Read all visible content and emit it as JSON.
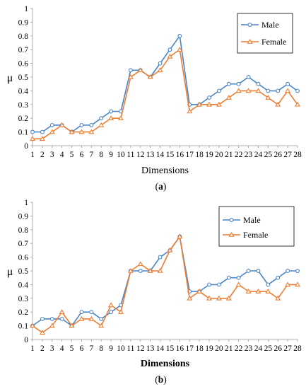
{
  "chart_data": [
    {
      "type": "line",
      "panel_label": "(a)",
      "xlabel": "Dimensions",
      "ylabel": "μ",
      "ylim": [
        0,
        1
      ],
      "yticks": [
        "0",
        "0.1",
        "0.2",
        "0.3",
        "0.4",
        "0.5",
        "0.6",
        "0.7",
        "0.8",
        "0.9",
        "1"
      ],
      "x": [
        "1",
        "2",
        "3",
        "4",
        "5",
        "6",
        "7",
        "8",
        "9",
        "10",
        "11",
        "12",
        "13",
        "14",
        "15",
        "16",
        "17",
        "18",
        "19",
        "20",
        "21",
        "22",
        "23",
        "24",
        "25",
        "26",
        "27",
        "28"
      ],
      "grid": false,
      "legend_position": "top-right",
      "series": [
        {
          "name": "Male",
          "color": "#4a86c8",
          "marker": "circle",
          "values": [
            0.1,
            0.1,
            0.15,
            0.15,
            0.1,
            0.15,
            0.15,
            0.2,
            0.25,
            0.25,
            0.55,
            0.55,
            0.5,
            0.6,
            0.7,
            0.8,
            0.3,
            0.3,
            0.35,
            0.4,
            0.45,
            0.45,
            0.5,
            0.45,
            0.4,
            0.4,
            0.45,
            0.4
          ]
        },
        {
          "name": "Female",
          "color": "#ed7d31",
          "marker": "triangle",
          "values": [
            0.05,
            0.05,
            0.1,
            0.15,
            0.1,
            0.1,
            0.1,
            0.15,
            0.2,
            0.2,
            0.5,
            0.55,
            0.5,
            0.55,
            0.65,
            0.7,
            0.25,
            0.3,
            0.3,
            0.3,
            0.35,
            0.4,
            0.4,
            0.4,
            0.35,
            0.3,
            0.4,
            0.3
          ]
        }
      ]
    },
    {
      "type": "line",
      "panel_label": "(b)",
      "xlabel": "Dimensions",
      "ylabel": "μ",
      "ylim": [
        0,
        1
      ],
      "yticks": [
        "0",
        "0.1",
        "0.2",
        "0.3",
        "0.4",
        "0.5",
        "0.6",
        "0.7",
        "0.8",
        "0.9",
        "1"
      ],
      "x": [
        "1",
        "2",
        "3",
        "4",
        "5",
        "6",
        "7",
        "8",
        "9",
        "10",
        "11",
        "12",
        "13",
        "14",
        "15",
        "16",
        "17",
        "18",
        "19",
        "20",
        "21",
        "22",
        "23",
        "24",
        "25",
        "26",
        "27",
        "28"
      ],
      "grid": false,
      "legend_position": "top-right",
      "series": [
        {
          "name": "Male",
          "color": "#4a86c8",
          "marker": "circle",
          "values": [
            0.1,
            0.15,
            0.15,
            0.15,
            0.1,
            0.2,
            0.2,
            0.15,
            0.2,
            0.25,
            0.5,
            0.5,
            0.5,
            0.6,
            0.65,
            0.75,
            0.35,
            0.35,
            0.4,
            0.4,
            0.45,
            0.45,
            0.5,
            0.5,
            0.4,
            0.45,
            0.5,
            0.5
          ]
        },
        {
          "name": "Female",
          "color": "#ed7d31",
          "marker": "triangle",
          "values": [
            0.1,
            0.05,
            0.1,
            0.2,
            0.1,
            0.15,
            0.15,
            0.1,
            0.25,
            0.2,
            0.5,
            0.55,
            0.5,
            0.5,
            0.65,
            0.75,
            0.3,
            0.35,
            0.3,
            0.3,
            0.3,
            0.4,
            0.35,
            0.35,
            0.35,
            0.3,
            0.4,
            0.4
          ]
        }
      ]
    }
  ]
}
